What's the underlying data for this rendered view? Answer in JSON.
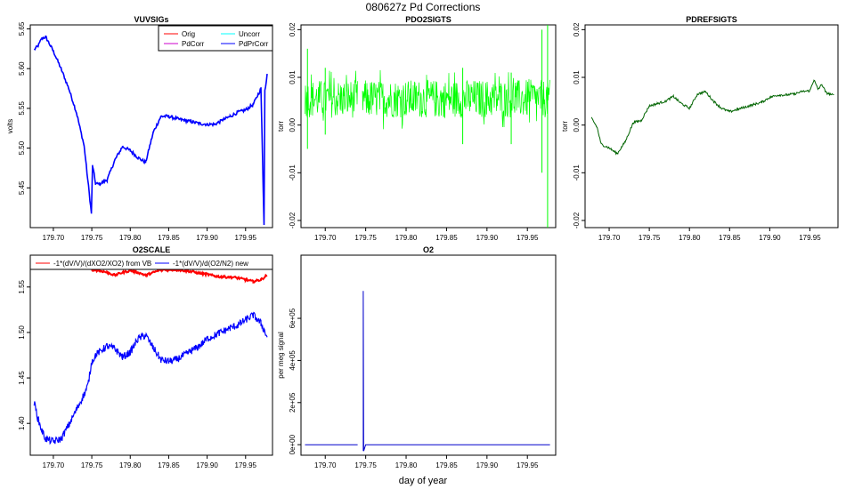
{
  "figure": {
    "title": "080627z   Pd Corrections",
    "xlabel": "day of year"
  },
  "colors": {
    "orig": "#ff0000",
    "uncorr": "#00ffff",
    "pdcorr": "#cc00cc",
    "pdprcorr": "#0000ff",
    "pdo2": "#00ff00",
    "pdref": "#006400",
    "o2scale_vb": "#ff0000",
    "o2scale_new": "#0000ff",
    "o2": "#0000cc"
  },
  "chart_data": [
    {
      "type": "line",
      "title": "VUVSIGs",
      "ylabel": "volts",
      "xlim": [
        179.67,
        179.985
      ],
      "ylim": [
        5.4,
        5.655
      ],
      "xticks": [
        "179.70",
        "179.75",
        "179.80",
        "179.85",
        "179.90",
        "179.95"
      ],
      "yticks": [
        "5.45",
        "5.50",
        "5.55",
        "5.60",
        "5.65"
      ],
      "legend": [
        "Orig",
        "Uncorr",
        "PdCorr",
        "PdPrCorr"
      ],
      "legend_position": "top-right",
      "series": [
        {
          "name": "PdPrCorr",
          "x": [
            179.675,
            179.68,
            179.685,
            179.69,
            179.7,
            179.71,
            179.72,
            179.73,
            179.74,
            179.7495,
            179.751,
            179.755,
            179.76,
            179.77,
            179.78,
            179.79,
            179.8,
            179.81,
            179.82,
            179.83,
            179.84,
            179.85,
            179.86,
            179.87,
            179.88,
            179.89,
            179.9,
            179.91,
            179.92,
            179.93,
            179.94,
            179.95,
            179.96,
            179.97,
            179.974,
            179.975,
            179.977,
            179.978
          ],
          "y": [
            5.624,
            5.628,
            5.638,
            5.64,
            5.622,
            5.6,
            5.575,
            5.545,
            5.503,
            5.418,
            5.478,
            5.455,
            5.455,
            5.46,
            5.485,
            5.502,
            5.497,
            5.488,
            5.482,
            5.52,
            5.54,
            5.54,
            5.537,
            5.535,
            5.533,
            5.531,
            5.53,
            5.53,
            5.535,
            5.54,
            5.545,
            5.548,
            5.555,
            5.575,
            5.405,
            5.572,
            5.585,
            5.595
          ]
        }
      ]
    },
    {
      "type": "line",
      "title": "PDO2SIGTS",
      "ylabel": "torr",
      "xlim": [
        179.67,
        179.985
      ],
      "ylim": [
        -0.0215,
        0.021
      ],
      "xticks": [
        "179.70",
        "179.75",
        "179.80",
        "179.85",
        "179.90",
        "179.95"
      ],
      "yticks": [
        "-0.02",
        "-0.01",
        "0.00",
        "0.01",
        "0.02"
      ],
      "series": [
        {
          "name": "",
          "segments": [
            [
              179.675,
              179.74
            ],
            [
              179.746,
              179.978
            ]
          ],
          "center": 0.0055,
          "band_halfwidth": 0.004,
          "spikes": [
            {
              "x": 179.678,
              "low": -0.005,
              "high": 0.016
            },
            {
              "x": 179.7,
              "low": -0.002,
              "high": 0.012
            },
            {
              "x": 179.87,
              "low": -0.004,
              "high": 0.012
            },
            {
              "x": 179.93,
              "low": -0.004,
              "high": 0.011
            },
            {
              "x": 179.968,
              "low": -0.01,
              "high": 0.02
            },
            {
              "x": 179.975,
              "low": -0.022,
              "high": 0.021
            }
          ]
        }
      ]
    },
    {
      "type": "line",
      "title": "PDREFSIGTS",
      "ylabel": "torr",
      "xlim": [
        179.67,
        179.985
      ],
      "ylim": [
        -0.0215,
        0.021
      ],
      "xticks": [
        "179.70",
        "179.75",
        "179.80",
        "179.85",
        "179.90",
        "179.95"
      ],
      "yticks": [
        "-0.02",
        "-0.01",
        "0.00",
        "0.01",
        "0.02"
      ],
      "series": [
        {
          "name": "",
          "x": [
            179.678,
            179.685,
            179.69,
            179.7,
            179.71,
            179.72,
            179.73,
            179.74,
            179.75,
            179.76,
            179.77,
            179.78,
            179.79,
            179.8,
            179.81,
            179.82,
            179.83,
            179.84,
            179.85,
            179.86,
            179.87,
            179.88,
            179.89,
            179.9,
            179.91,
            179.92,
            179.93,
            179.94,
            179.95,
            179.955,
            179.96,
            179.965,
            179.97,
            179.98
          ],
          "y": [
            0.0015,
            -0.0005,
            -0.004,
            -0.0048,
            -0.006,
            -0.0035,
            0.0005,
            0.001,
            0.004,
            0.0045,
            0.005,
            0.006,
            0.0045,
            0.0035,
            0.0065,
            0.007,
            0.005,
            0.0035,
            0.0028,
            0.0033,
            0.0038,
            0.0043,
            0.0048,
            0.0058,
            0.0063,
            0.0063,
            0.0065,
            0.007,
            0.0072,
            0.0095,
            0.0075,
            0.0085,
            0.0068,
            0.0062
          ]
        }
      ]
    },
    {
      "type": "line",
      "title": "O2SCALE",
      "ylabel": "",
      "xlim": [
        179.67,
        179.985
      ],
      "ylim": [
        1.365,
        1.585
      ],
      "xticks": [
        "179.70",
        "179.75",
        "179.80",
        "179.85",
        "179.90",
        "179.95"
      ],
      "yticks": [
        "1.40",
        "1.45",
        "1.50",
        "1.55"
      ],
      "legend": [
        "-1*(dV/V)/(dXO2/XO2) from VB",
        "-1*(dV/V)/d(O2/N2) new"
      ],
      "legend_position": "top",
      "series": [
        {
          "name": "-1*(dV/V)/(dXO2/XO2) from VB",
          "x": [
            179.75,
            179.76,
            179.77,
            179.78,
            179.79,
            179.8,
            179.81,
            179.82,
            179.83,
            179.84,
            179.85,
            179.86,
            179.87,
            179.88,
            179.89,
            179.9,
            179.91,
            179.92,
            179.93,
            179.94,
            179.95,
            179.96,
            179.97,
            179.978
          ],
          "y": [
            1.569,
            1.568,
            1.566,
            1.563,
            1.566,
            1.568,
            1.566,
            1.563,
            1.566,
            1.569,
            1.569,
            1.569,
            1.568,
            1.567,
            1.565,
            1.564,
            1.562,
            1.561,
            1.561,
            1.56,
            1.558,
            1.556,
            1.558,
            1.563
          ]
        },
        {
          "name": "-1*(dV/V)/d(O2/N2) new",
          "x": [
            179.675,
            179.68,
            179.685,
            179.69,
            179.7,
            179.71,
            179.72,
            179.73,
            179.74,
            179.745,
            179.75,
            179.755,
            179.76,
            179.77,
            179.78,
            179.79,
            179.8,
            179.81,
            179.82,
            179.83,
            179.84,
            179.85,
            179.86,
            179.87,
            179.88,
            179.89,
            179.9,
            179.91,
            179.92,
            179.93,
            179.94,
            179.95,
            179.96,
            179.97,
            179.978
          ],
          "y": [
            1.423,
            1.405,
            1.392,
            1.383,
            1.38,
            1.383,
            1.398,
            1.415,
            1.432,
            1.442,
            1.468,
            1.475,
            1.479,
            1.485,
            1.482,
            1.473,
            1.478,
            1.493,
            1.497,
            1.483,
            1.47,
            1.468,
            1.47,
            1.475,
            1.48,
            1.485,
            1.493,
            1.497,
            1.501,
            1.505,
            1.508,
            1.514,
            1.519,
            1.51,
            1.495
          ]
        }
      ]
    },
    {
      "type": "line",
      "title": "O2",
      "ylabel": "per meg signal",
      "xlim": [
        179.67,
        179.985
      ],
      "ylim": [
        -50000,
        900000
      ],
      "xticks": [
        "179.70",
        "179.75",
        "179.80",
        "179.85",
        "179.90",
        "179.95"
      ],
      "yticks": [
        "0e+00",
        "2e+05",
        "4e+05",
        "6e+05"
      ],
      "yticks_values": [
        0,
        200000,
        400000,
        600000
      ],
      "series": [
        {
          "name": "",
          "x": [
            179.675,
            179.74,
            null,
            179.747,
            179.747,
            179.7475,
            179.75,
            179.978
          ],
          "y": [
            0,
            0,
            null,
            -30000,
            730000,
            -30000,
            0,
            0
          ]
        }
      ]
    }
  ]
}
